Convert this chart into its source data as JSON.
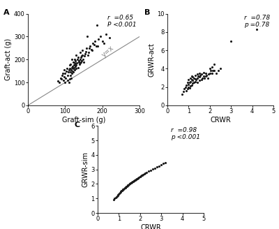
{
  "panel_A": {
    "label": "A",
    "xlabel": "Graft-sim (g)",
    "ylabel": "Graft-act (g)",
    "xlim": [
      0,
      300
    ],
    "ylim": [
      0,
      400
    ],
    "xticks": [
      0,
      100,
      200,
      300
    ],
    "yticks": [
      0,
      100,
      200,
      300,
      400
    ],
    "ann_r": "r  =0.65",
    "ann_p": "P <0.001",
    "line_label": "y=x",
    "x": [
      80,
      85,
      88,
      90,
      92,
      93,
      95,
      97,
      98,
      100,
      100,
      102,
      103,
      105,
      106,
      107,
      108,
      110,
      110,
      112,
      113,
      113,
      114,
      115,
      115,
      116,
      117,
      118,
      118,
      119,
      120,
      120,
      121,
      122,
      122,
      123,
      124,
      125,
      125,
      126,
      127,
      128,
      128,
      129,
      130,
      130,
      132,
      133,
      135,
      135,
      136,
      137,
      138,
      140,
      140,
      141,
      142,
      143,
      144,
      145,
      146,
      147,
      148,
      150,
      151,
      153,
      155,
      158,
      160,
      162,
      163,
      165,
      167,
      170,
      172,
      175,
      178,
      180,
      183,
      185,
      188,
      190,
      195,
      200,
      205,
      210,
      220
    ],
    "y": [
      105,
      100,
      120,
      115,
      130,
      140,
      110,
      125,
      155,
      100,
      140,
      120,
      150,
      160,
      110,
      130,
      145,
      155,
      100,
      115,
      160,
      175,
      130,
      145,
      180,
      120,
      155,
      165,
      200,
      140,
      150,
      170,
      160,
      145,
      190,
      175,
      165,
      185,
      200,
      155,
      170,
      195,
      180,
      160,
      175,
      220,
      185,
      200,
      165,
      210,
      190,
      195,
      180,
      200,
      230,
      185,
      210,
      190,
      215,
      195,
      220,
      240,
      200,
      190,
      215,
      225,
      235,
      250,
      300,
      220,
      230,
      250,
      260,
      245,
      240,
      270,
      265,
      280,
      260,
      350,
      260,
      290,
      300,
      280,
      270,
      310,
      295
    ]
  },
  "panel_B": {
    "label": "B",
    "xlabel": "CRWR",
    "ylabel": "GRWR-act",
    "xlim": [
      0,
      5
    ],
    "ylim": [
      0,
      10
    ],
    "xticks": [
      0,
      1,
      2,
      3,
      4,
      5
    ],
    "yticks": [
      0,
      2,
      4,
      6,
      8,
      10
    ],
    "ann_r": "r  =0.78",
    "ann_p": "p =0.78",
    "x": [
      0.7,
      0.75,
      0.8,
      0.85,
      0.9,
      0.9,
      0.95,
      0.95,
      1.0,
      1.0,
      1.0,
      1.05,
      1.05,
      1.1,
      1.1,
      1.1,
      1.15,
      1.15,
      1.15,
      1.2,
      1.2,
      1.2,
      1.25,
      1.25,
      1.3,
      1.3,
      1.3,
      1.35,
      1.4,
      1.4,
      1.4,
      1.45,
      1.5,
      1.5,
      1.5,
      1.55,
      1.6,
      1.6,
      1.65,
      1.7,
      1.7,
      1.75,
      1.8,
      1.8,
      1.85,
      1.9,
      1.95,
      2.0,
      2.0,
      2.05,
      2.1,
      2.1,
      2.15,
      2.2,
      2.2,
      2.3,
      2.4,
      2.5,
      3.0,
      4.2
    ],
    "y": [
      1.2,
      1.5,
      1.8,
      2.0,
      1.6,
      2.2,
      1.8,
      2.5,
      2.0,
      2.3,
      2.8,
      1.9,
      2.5,
      2.1,
      2.6,
      3.0,
      2.2,
      2.8,
      3.2,
      2.4,
      2.7,
      3.1,
      2.5,
      3.0,
      2.6,
      2.9,
      3.3,
      2.8,
      2.5,
      3.0,
      3.4,
      3.2,
      2.7,
      3.1,
      3.5,
      3.3,
      2.8,
      3.4,
      3.0,
      3.2,
      3.6,
      3.0,
      3.2,
      3.5,
      3.3,
      3.0,
      3.4,
      3.5,
      4.0,
      3.8,
      3.5,
      4.2,
      3.8,
      4.5,
      3.8,
      3.5,
      3.8,
      4.0,
      7.0,
      8.3
    ]
  },
  "panel_C": {
    "label": "C",
    "xlabel": "CRWR",
    "ylabel": "GRWR-sim",
    "xlim": [
      0,
      5
    ],
    "ylim": [
      0,
      6
    ],
    "xticks": [
      0,
      1,
      2,
      3,
      4,
      5
    ],
    "yticks": [
      0,
      1,
      2,
      3,
      4,
      5,
      6
    ],
    "ann_r": "r  =0.98",
    "ann_p": "p <0.001",
    "x": [
      0.75,
      0.8,
      0.85,
      0.9,
      0.92,
      0.95,
      0.97,
      1.0,
      1.02,
      1.05,
      1.07,
      1.1,
      1.12,
      1.15,
      1.17,
      1.2,
      1.22,
      1.25,
      1.27,
      1.3,
      1.32,
      1.35,
      1.37,
      1.4,
      1.42,
      1.45,
      1.47,
      1.5,
      1.52,
      1.55,
      1.57,
      1.6,
      1.62,
      1.65,
      1.67,
      1.7,
      1.72,
      1.75,
      1.77,
      1.8,
      1.82,
      1.85,
      1.87,
      1.9,
      1.92,
      1.95,
      2.0,
      2.02,
      2.05,
      2.07,
      2.1,
      2.15,
      2.2,
      2.25,
      2.3,
      2.4,
      2.5,
      2.6,
      2.7,
      2.8,
      2.9,
      3.0,
      3.1,
      3.2
    ],
    "y": [
      0.9,
      1.0,
      1.05,
      1.1,
      1.15,
      1.2,
      1.25,
      1.3,
      1.35,
      1.4,
      1.45,
      1.5,
      1.52,
      1.55,
      1.58,
      1.62,
      1.65,
      1.68,
      1.72,
      1.75,
      1.78,
      1.82,
      1.85,
      1.88,
      1.92,
      1.95,
      1.98,
      2.0,
      2.02,
      2.05,
      2.08,
      2.1,
      2.13,
      2.15,
      2.18,
      2.2,
      2.22,
      2.25,
      2.28,
      2.3,
      2.33,
      2.35,
      2.38,
      2.4,
      2.43,
      2.45,
      2.5,
      2.52,
      2.55,
      2.58,
      2.6,
      2.65,
      2.7,
      2.75,
      2.8,
      2.88,
      2.95,
      3.02,
      3.1,
      3.18,
      3.25,
      3.32,
      3.4,
      3.48
    ]
  },
  "dot_color": "#1a1a1a",
  "dot_size": 5,
  "line_color": "#888888",
  "font_size": 7,
  "label_font_size": 7,
  "tick_font_size": 6,
  "annot_font_size": 6.5
}
